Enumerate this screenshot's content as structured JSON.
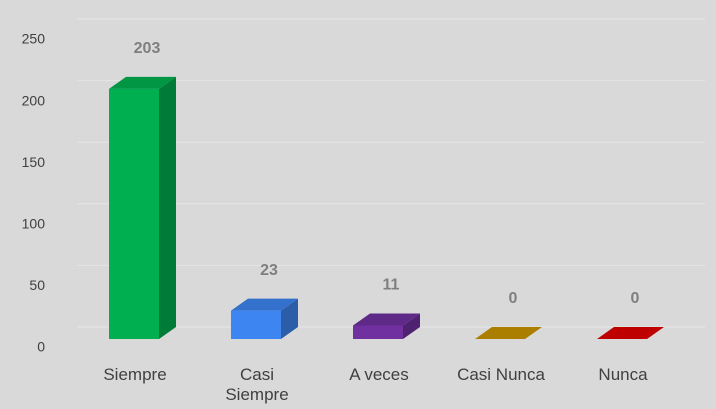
{
  "chart_data": {
    "type": "bar3d",
    "categories": [
      "Siempre",
      "Casi Siempre",
      "A veces",
      "Casi Nunca",
      "Nunca"
    ],
    "values": [
      203,
      23,
      11,
      0,
      0
    ],
    "colors": [
      "#00b050",
      "#3d85f0",
      "#7030a0",
      "#c99400",
      "#e00000"
    ],
    "ylim": [
      0,
      250
    ],
    "yticks": [
      0,
      50,
      100,
      150,
      200,
      250
    ],
    "grid": true
  }
}
